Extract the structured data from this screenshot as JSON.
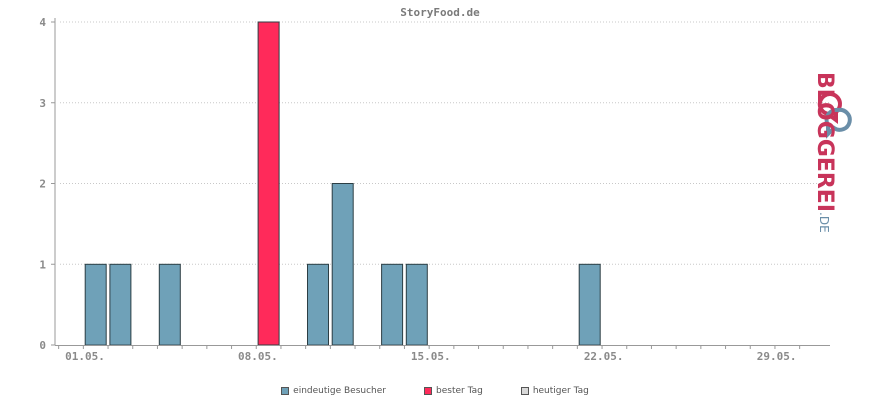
{
  "chart_data": {
    "type": "bar",
    "title": "StoryFood.de",
    "xlabel": "",
    "ylabel": "",
    "ylim": [
      0,
      4
    ],
    "yticks": [
      "0",
      "1",
      "2",
      "3",
      "4"
    ],
    "x_tick_labels": [
      "01.05.",
      "08.05.",
      "15.05.",
      "22.05.",
      "29.05."
    ],
    "grid": true,
    "legend_position": "bottom-center",
    "categories": [
      "01.05.",
      "02.05.",
      "03.05.",
      "04.05.",
      "05.05.",
      "06.05.",
      "07.05.",
      "08.05.",
      "09.05.",
      "10.05.",
      "11.05.",
      "12.05.",
      "13.05.",
      "14.05.",
      "15.05.",
      "16.05.",
      "17.05.",
      "18.05.",
      "19.05.",
      "20.05.",
      "21.05.",
      "22.05.",
      "23.05.",
      "24.05.",
      "25.05.",
      "26.05.",
      "27.05.",
      "28.05.",
      "29.05.",
      "30.05.",
      "31.05."
    ],
    "series": [
      {
        "name": "eindeutige Besucher",
        "color": "#6fa1b8",
        "values": [
          0,
          1,
          1,
          0,
          1,
          0,
          0,
          0,
          4,
          0,
          1,
          2,
          0,
          1,
          1,
          0,
          0,
          0,
          0,
          0,
          0,
          1,
          0,
          0,
          0,
          0,
          0,
          0,
          0,
          0,
          0
        ]
      }
    ],
    "best_day_index": 8,
    "best_day_color": "#ff2a5a",
    "today_color": "#d8d8d8",
    "legend": [
      {
        "label": "eindeutige Besucher",
        "color": "#6fa1b8"
      },
      {
        "label": "bester Tag",
        "color": "#ff2a5a"
      },
      {
        "label": "heutiger Tag",
        "color": "#d8d8d8"
      }
    ]
  },
  "brand": {
    "name": "BLOGGEREI",
    "tld": ".DE"
  }
}
